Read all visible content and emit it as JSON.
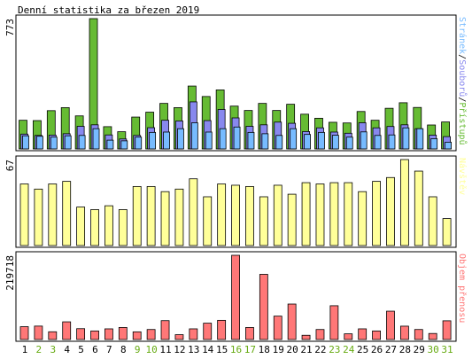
{
  "chart_data": {
    "type": "bar",
    "title": "Denní statistika za březen 2019",
    "categories": [
      "1",
      "2",
      "3",
      "4",
      "5",
      "6",
      "7",
      "8",
      "9",
      "10",
      "11",
      "12",
      "13",
      "14",
      "15",
      "16",
      "17",
      "18",
      "19",
      "20",
      "21",
      "22",
      "23",
      "24",
      "25",
      "26",
      "27",
      "28",
      "29",
      "30",
      "31"
    ],
    "weekend_days": [
      "2",
      "3",
      "9",
      "10",
      "16",
      "17",
      "23",
      "24",
      "30",
      "31"
    ],
    "colors": {
      "pristupu": "#66bb33",
      "souboru": "#8888ee",
      "stranek": "#77bbff",
      "navstev": "#ffff99",
      "objem": "#ff7777",
      "weekend_label": "#66aa11",
      "weekday_label": "#000000",
      "frame": "#000000"
    },
    "panels": [
      {
        "id": "hits",
        "max_label": "773",
        "max_value": 773,
        "legend": [
          {
            "name": "Stránek",
            "color": "#77bbff"
          },
          {
            "name": "/",
            "color": "#000000"
          },
          {
            "name": "Souborů",
            "color": "#8888ee"
          },
          {
            "name": "/",
            "color": "#000000"
          },
          {
            "name": "Přístupů",
            "color": "#66bb33"
          }
        ],
        "series": [
          {
            "name": "Přístupů",
            "values": [
              170,
              168,
              227,
              245,
              196,
              773,
              132,
              102,
              189,
              218,
              270,
              245,
              373,
              311,
              350,
              254,
              228,
              270,
              228,
              265,
              206,
              182,
              158,
              154,
              222,
              170,
              241,
              274,
              246,
              142,
              160
            ]
          },
          {
            "name": "Souborů",
            "values": [
              88,
              80,
              82,
              90,
              134,
              143,
              83,
              59,
              80,
              126,
              170,
              166,
              279,
              168,
              234,
              184,
              134,
              143,
              159,
              152,
              103,
              125,
              100,
              93,
              155,
              125,
              133,
              143,
              120,
              82,
              73
            ]
          },
          {
            "name": "Stránek",
            "values": [
              78,
              75,
              70,
              78,
              80,
              120,
              52,
              48,
              70,
              98,
              100,
              120,
              155,
              100,
              120,
              130,
              98,
              90,
              80,
              120,
              86,
              98,
              81,
              70,
              101,
              80,
              83,
              125,
              120,
              61,
              40
            ]
          }
        ]
      },
      {
        "id": "visits",
        "max_label": "67",
        "max_value": 67,
        "legend": [
          {
            "name": "Návštěv",
            "color": "#ffff99"
          }
        ],
        "series": [
          {
            "name": "Návštěv",
            "values": [
              48,
              44,
              48,
              50,
              30,
              28,
              31,
              28,
              46,
              46,
              42,
              44,
              52,
              38,
              48,
              47,
              46,
              38,
              47,
              40,
              49,
              48,
              49,
              49,
              42,
              50,
              53,
              67,
              58,
              38,
              21
            ]
          }
        ]
      },
      {
        "id": "volume",
        "max_label": "219718",
        "max_value": 219718,
        "legend": [
          {
            "name": "Objem přenosu",
            "color": "#ff7777"
          }
        ],
        "series": [
          {
            "name": "Objem přenosu",
            "values": [
              33500,
              35000,
              20200,
              46100,
              28300,
              22300,
              27800,
              31400,
              20000,
              26100,
              49200,
              12600,
              27800,
              42600,
              50000,
              219718,
              31400,
              170000,
              61000,
              92500,
              11000,
              26100,
              88100,
              14800,
              27800,
              22300,
              73900,
              34800,
              26100,
              15700,
              48800
            ]
          }
        ]
      }
    ]
  }
}
